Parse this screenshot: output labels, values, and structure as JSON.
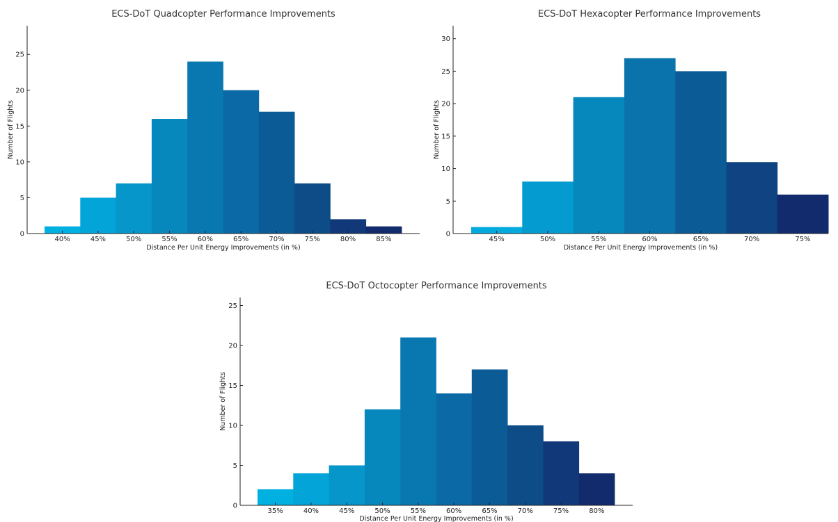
{
  "chart_data": [
    {
      "type": "bar",
      "title": "ECS-DoT Quadcopter Performance Improvements",
      "xlabel": "Distance Per Unit Energy Improvements (in %)",
      "ylabel": "Number of Flights",
      "categories": [
        "40%",
        "45%",
        "50%",
        "55%",
        "60%",
        "65%",
        "70%",
        "75%",
        "80%",
        "85%"
      ],
      "values": [
        1,
        5,
        7,
        16,
        24,
        20,
        17,
        7,
        2,
        1
      ],
      "ylim": [
        0,
        29
      ],
      "yticks": [
        0,
        5,
        10,
        15,
        20,
        25
      ],
      "grid": false,
      "colors": [
        "#00b0e0",
        "#03a5d8",
        "#0696c9",
        "#0688bd",
        "#0a78b0",
        "#0b6aa5",
        "#0b5b97",
        "#0d4c87",
        "#11397a",
        "#122b6d"
      ]
    },
    {
      "type": "bar",
      "title": "ECS-DoT Hexacopter Performance Improvements",
      "xlabel": "Distance Per Unit Energy Improvements (in %)",
      "ylabel": "Number of Flights",
      "categories": [
        "45%",
        "50%",
        "55%",
        "60%",
        "65%",
        "70%",
        "75%"
      ],
      "values": [
        1,
        8,
        21,
        27,
        25,
        11,
        6
      ],
      "ylim": [
        0,
        32
      ],
      "yticks": [
        0,
        5,
        10,
        15,
        20,
        25,
        30
      ],
      "grid": false,
      "colors": [
        "#03aadd",
        "#049bd0",
        "#0688bd",
        "#0a73ab",
        "#0b5b97",
        "#0f4381",
        "#122b6d"
      ]
    },
    {
      "type": "bar",
      "title": "ECS-DoT Octocopter Performance Improvements",
      "xlabel": "Distance Per Unit Energy Improvements (in %)",
      "ylabel": "Number of Flights",
      "categories": [
        "35%",
        "40%",
        "45%",
        "50%",
        "55%",
        "60%",
        "65%",
        "70%",
        "75%",
        "80%"
      ],
      "values": [
        2,
        4,
        5,
        12,
        21,
        14,
        17,
        10,
        8,
        4
      ],
      "ylim": [
        0,
        26
      ],
      "yticks": [
        0,
        5,
        10,
        15,
        20,
        25
      ],
      "grid": false,
      "colors": [
        "#00b0e0",
        "#03a5d8",
        "#0696c9",
        "#0688bd",
        "#0a78b0",
        "#0b6aa5",
        "#0b5b97",
        "#0d4c87",
        "#11397a",
        "#122b6d"
      ]
    }
  ]
}
